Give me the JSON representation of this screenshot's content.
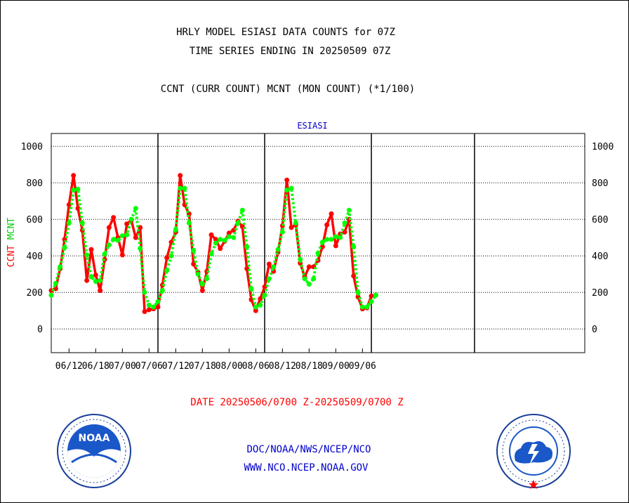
{
  "title_line1": "HRLY MODEL ESIASI DATA COUNTS for 07Z",
  "title_line2": "TIME SERIES ENDING IN 20250509 07Z",
  "subtitle": "CCNT (CURR COUNT) MCNT (MON COUNT) (*1/100)",
  "panel_label": "ESIASI",
  "date_range": "DATE 20250506/0700 Z-20250509/0700 Z",
  "footer_line1": "DOC/NOAA/NWS/NCEP/NCO",
  "footer_line2": "WWW.NCO.NCEP.NOAA.GOV",
  "logos": {
    "left": "NOAA logo",
    "right": "National Weather Service logo"
  },
  "chart_data": {
    "type": "line",
    "ylabel_parts": [
      {
        "text": "CCNT",
        "color": "#ff0000"
      },
      {
        "text": "MCNT",
        "color": "#00cc00"
      }
    ],
    "ylim": [
      -130,
      1070
    ],
    "yticks": [
      0,
      200,
      400,
      600,
      800,
      1000
    ],
    "ytick_labels": [
      "0",
      "200",
      "400",
      "600",
      "800",
      "1000"
    ],
    "xlim": [
      0,
      60
    ],
    "xticks": [
      2,
      5,
      8,
      11,
      14,
      17,
      20,
      23,
      26,
      29,
      32,
      35
    ],
    "xtick_labels": [
      "06/12",
      "06/18",
      "07/00",
      "07/06",
      "07/12",
      "07/18",
      "08/00",
      "08/06",
      "08/12",
      "08/18",
      "09/00",
      "09/06"
    ],
    "day_boundaries": [
      12,
      24,
      36,
      47.6
    ],
    "grid": true,
    "series": [
      {
        "name": "CCNT",
        "color": "#ff0000",
        "style": "solid",
        "x": [
          0,
          0.5,
          1,
          1.5,
          2,
          2.5,
          3,
          3.5,
          4,
          4.5,
          5,
          5.5,
          6,
          6.5,
          7,
          7.5,
          8,
          8.5,
          9,
          9.5,
          10,
          10.5,
          11,
          11.5,
          12,
          12.5,
          13,
          13.5,
          14,
          14.5,
          15,
          15.5,
          16,
          16.5,
          17,
          17.5,
          18,
          18.5,
          19,
          19.5,
          20,
          20.5,
          21,
          21.5,
          22,
          22.5,
          23,
          23.5,
          24,
          24.5,
          25,
          25.5,
          26,
          26.5,
          27,
          27.5,
          28,
          28.5,
          29,
          29.5,
          30,
          30.5,
          31,
          31.5,
          32,
          32.5,
          33,
          33.5,
          34,
          34.5,
          35,
          35.5,
          36,
          36.5
        ],
        "y": [
          210,
          220,
          330,
          490,
          680,
          840,
          660,
          540,
          265,
          435,
          295,
          210,
          380,
          555,
          610,
          500,
          405,
          575,
          595,
          500,
          555,
          95,
          105,
          110,
          120,
          240,
          390,
          475,
          530,
          840,
          680,
          630,
          355,
          310,
          210,
          315,
          515,
          490,
          440,
          480,
          525,
          540,
          590,
          560,
          330,
          160,
          100,
          165,
          230,
          355,
          315,
          420,
          565,
          815,
          555,
          570,
          360,
          285,
          340,
          340,
          375,
          450,
          570,
          630,
          455,
          520,
          530,
          600,
          290,
          175,
          110,
          115,
          180,
          185
        ]
      },
      {
        "name": "MCNT",
        "color": "#00ff00",
        "style": "dotted",
        "x": [
          0,
          0.5,
          1,
          1.5,
          2,
          2.5,
          3,
          3.5,
          4,
          4.5,
          5,
          5.5,
          6,
          6.5,
          7,
          7.5,
          8,
          8.5,
          9,
          9.5,
          10,
          10.5,
          11,
          11.5,
          12,
          12.5,
          13,
          13.5,
          14,
          14.5,
          15,
          15.5,
          16,
          16.5,
          17,
          17.5,
          18,
          18.5,
          19,
          19.5,
          20,
          20.5,
          21,
          21.5,
          22,
          22.5,
          23,
          23.5,
          24,
          24.5,
          25,
          25.5,
          26,
          26.5,
          27,
          27.5,
          28,
          28.5,
          29,
          29.5,
          30,
          30.5,
          31,
          31.5,
          32,
          32.5,
          33,
          33.5,
          34,
          34.5,
          35,
          35.5,
          36,
          36.5
        ],
        "y": [
          185,
          250,
          340,
          445,
          580,
          760,
          765,
          580,
          405,
          285,
          260,
          265,
          410,
          460,
          490,
          485,
          510,
          515,
          600,
          660,
          440,
          200,
          130,
          120,
          150,
          210,
          320,
          400,
          545,
          770,
          770,
          580,
          430,
          300,
          245,
          275,
          410,
          470,
          490,
          485,
          505,
          500,
          580,
          650,
          450,
          220,
          120,
          130,
          185,
          275,
          340,
          435,
          530,
          760,
          770,
          580,
          380,
          275,
          245,
          275,
          415,
          475,
          490,
          490,
          505,
          500,
          580,
          650,
          450,
          200,
          120,
          120,
          150,
          185
        ]
      }
    ]
  }
}
